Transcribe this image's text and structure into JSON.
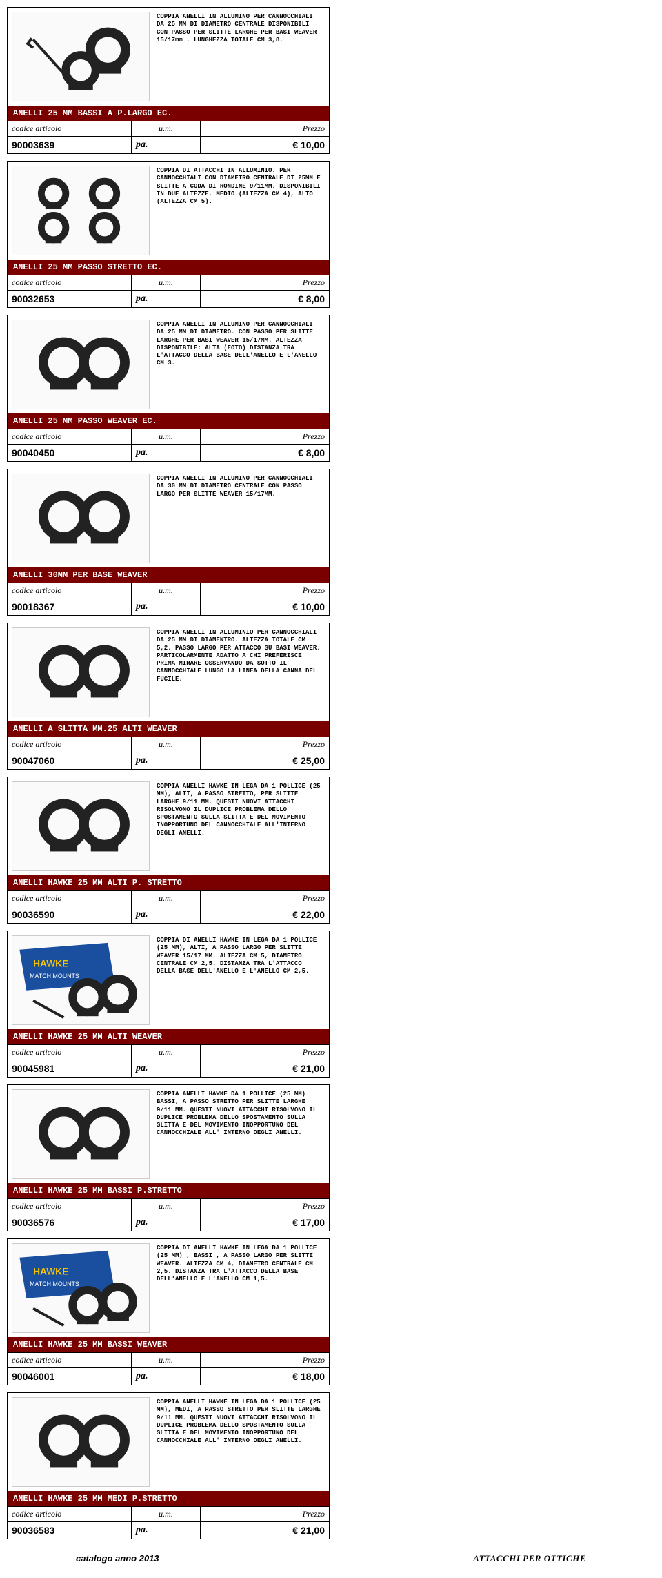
{
  "header_code": "codice articolo",
  "header_um": "u.m.",
  "header_price": "Prezzo",
  "um_value": "pa.",
  "currency": "€",
  "footer_left": "catalogo anno 2013",
  "footer_right": "ATTACCHI PER OTTICHE",
  "products": [
    {
      "desc": "COPPIA ANELLI IN ALLUMINO PER CANNOCCHIALI DA 25 MM DI DIAMETRO CENTRALE DISPONIBILI CON PASSO PER SLITTE LARGHE PER BASI WEAVER 15/17mm . LUNGHEZZA TOTALE CM 3,8.",
      "title": "ANELLI 25 MM  BASSI A  P.LARGO EC.",
      "code": "90003639",
      "price": "10,00",
      "img": "rings1"
    },
    {
      "desc": "COPPIA DI ATTACCHI IN ALLUMINIO. PER CANNOCCHIALI CON DIAMETRO CENTRALE DI 25MM E SLITTE A CODA DI RONDINE 9/11MM. DISPONIBILI IN DUE ALTEZZE. MEDIO (ALTEZZA CM 4), ALTO (ALTEZZA CM 5).",
      "title": "ANELLI 25 MM PASSO STRETTO EC.",
      "code": "90032653",
      "price": "8,00",
      "img": "rings4"
    },
    {
      "desc": "COPPIA ANELLI IN ALLUMINO PER CANNOCCHIALI DA 25 MM DI DIAMETRO. CON PASSO PER SLITTE LARGHE PER BASI WEAVER 15/17MM. ALTEZZA DISPONIBILE: ALTA (FOTO) DISTANZA TRA L'ATTACCO DELLA BASE DELL'ANELLO E L'ANELLO CM 3.",
      "title": "ANELLI 25 MM PASSO WEAVER  EC.",
      "code": "90040450",
      "price": "8,00",
      "img": "rings2"
    },
    {
      "desc": "COPPIA ANELLI IN ALLUMINO PER CANNOCCHIALI DA 30 MM DI DIAMETRO CENTRALE CON PASSO LARGO  PER SLITTE  WEAVER 15/17MM.",
      "title": "ANELLI 30MM PER BASE WEAVER",
      "code": "90018367",
      "price": "10,00",
      "img": "rings2"
    },
    {
      "desc": "COPPIA ANELLI IN ALLUMINIO PER CANNOCCHIALI DA 25 MM DI DIAMENTRO. ALTEZZA TOTALE CM 5,2. PASSO LARGO PER ATTACCO SU BASI WEAVER. PARTICOLARMENTE ADATTO A CHI PREFERISCE PRIMA MIRARE OSSERVANDO DA SOTTO IL CANNOCCHIALE LUNGO LA LINEA DELLA CANNA DEL FUCILE.",
      "title": "ANELLI A SLITTA MM.25 ALTI WEAVER",
      "code": "90047060",
      "price": "25,00",
      "img": "rings2"
    },
    {
      "desc": "COPPIA ANELLI HAWKE IN LEGA DA 1 POLLICE (25 MM),  ALTI,  A PASSO STRETTO,  PER  SLITTE LARGHE 9/11 MM. QUESTI NUOVI ATTACCHI RISOLVONO IL DUPLICE PROBLEMA DELLO SPOSTAMENTO SULLA SLITTA E DEL MOVIMENTO INOPPORTUNO DEL CANNOCCHIALE ALL'INTERNO DEGLI ANELLI.",
      "title": "ANELLI HAWKE 25 MM ALTI P. STRETTO",
      "code": "90036590",
      "price": "22,00",
      "img": "rings2"
    },
    {
      "desc": "COPPIA DI ANELLI HAWKE IN LEGA DA 1 POLLICE (25 MM), ALTI, A PASSO LARGO PER SLITTE WEAVER 15/17 MM. ALTEZZA CM 5, DIAMETRO CENTRALE CM 2,5. DISTANZA TRA L'ATTACCO DELLA BASE DELL'ANELLO E L'ANELLO CM 2,5.",
      "title": "ANELLI HAWKE 25 MM ALTI WEAVER",
      "code": "90045981",
      "price": "21,00",
      "img": "hawke"
    },
    {
      "desc": "COPPIA ANELLI HAWKE DA 1 POLLICE (25 MM)  BASSI, A PASSO STRETTO PER SLITTE LARGHE 9/11 MM. QUESTI NUOVI ATTACCHI RISOLVONO IL DUPLICE PROBLEMA DELLO SPOSTAMENTO SULLA SLITTA E DEL MOVIMENTO INOPPORTUNO DEL CANNOCCHIALE ALL' INTERNO DEGLI ANELLI.",
      "title": "ANELLI HAWKE 25 MM BASSI P.STRETTO",
      "code": "90036576",
      "price": "17,00",
      "img": "rings2"
    },
    {
      "desc": "COPPIA DI ANELLI HAWKE IN LEGA DA 1 POLLICE (25 MM) , BASSI , A PASSO  LARGO  PER SLITTE WEAVER. ALTEZZA CM 4, DIAMETRO CENTRALE CM 2,5. DISTANZA TRA L'ATTACCO DELLA BASE DELL'ANELLO E L'ANELLO CM 1,5.",
      "title": "ANELLI HAWKE 25 MM BASSI WEAVER",
      "code": "90046001",
      "price": "18,00",
      "img": "hawke"
    },
    {
      "desc": "COPPIA ANELLI HAWKE IN LEGA DA 1 POLLICE (25 MM), MEDI, A PASSO STRETTO PER  SLITTE LARGHE 9/11 MM. QUESTI NUOVI ATTACCHI RISOLVONO IL DUPLICE PROBLEMA DELLO SPOSTAMENTO SULLA SLITTA E DEL MOVIMENTO INOPPORTUNO DEL CANNOCCHIALE ALL' INTERNO DEGLI ANELLI.",
      "title": "ANELLI HAWKE 25 MM MEDI P.STRETTO",
      "code": "90036583",
      "price": "21,00",
      "img": "rings2"
    }
  ],
  "svg_defs": {
    "rings1": "<svg viewBox='0 0 200 130'><rect width='200' height='130' fill='#fafafa'/><g fill='#222'><circle cx='140' cy='55' r='26' fill='none' stroke='#222' stroke-width='14'/><rect x='120' y='78' width='40' height='12'/><circle cx='100' cy='85' r='22' fill='none' stroke='#222' stroke-width='12'/><rect x='82' y='104' width='36' height='10'/><line x1='30' y1='40' x2='75' y2='90' stroke='#222' stroke-width='4'/><polyline points='28,38 22,46 30,52' fill='none' stroke='#222' stroke-width='4'/></g></svg>",
    "rings2": "<svg viewBox='0 0 200 130'><rect width='200' height='130' fill='#fafafa'/><g fill='#222'><circle cx='75' cy='62' r='30' fill='none' stroke='#222' stroke-width='14'/><rect x='55' y='88' width='40' height='14'/><circle cx='135' cy='62' r='30' fill='none' stroke='#222' stroke-width='14'/><rect x='115' y='88' width='40' height='14'/></g></svg>",
    "rings4": "<svg viewBox='0 0 200 130'><rect width='200' height='130' fill='#fafafa'/><g fill='#222'><circle cx='60' cy='40' r='18' fill='none' stroke='#222' stroke-width='10'/><rect x='48' y='55' width='24' height='8'/><circle cx='135' cy='40' r='18' fill='none' stroke='#222' stroke-width='10'/><rect x='123' y='55' width='24' height='8'/><circle cx='60' cy='90' r='18' fill='none' stroke='#222' stroke-width='10'/><rect x='48' y='105' width='24' height='8'/><circle cx='135' cy='90' r='18' fill='none' stroke='#222' stroke-width='10'/><rect x='123' y='105' width='24' height='8'/></g></svg>",
    "hawke": "<svg viewBox='0 0 200 130'><rect width='200' height='130' fill='#fafafa'/><polygon points='10,20 140,10 150,70 20,80' fill='#1a4fa0'/><text x='30' y='45' fill='#f5c400' font-size='14' font-weight='bold' font-family='Arial'>HAWKE</text><text x='25' y='62' fill='#fff' font-size='9' font-family='Arial'>MATCH MOUNTS</text><g fill='#222'><circle cx='110' cy='90' r='22' fill='none' stroke='#222' stroke-width='12'/><rect x='94' y='108' width='32' height='10'/><circle cx='155' cy='85' r='22' fill='none' stroke='#222' stroke-width='12'/><rect x='139' y='103' width='32' height='10'/><line x1='30' y1='95' x2='75' y2='120' stroke='#222' stroke-width='4'/></g></svg>"
  }
}
